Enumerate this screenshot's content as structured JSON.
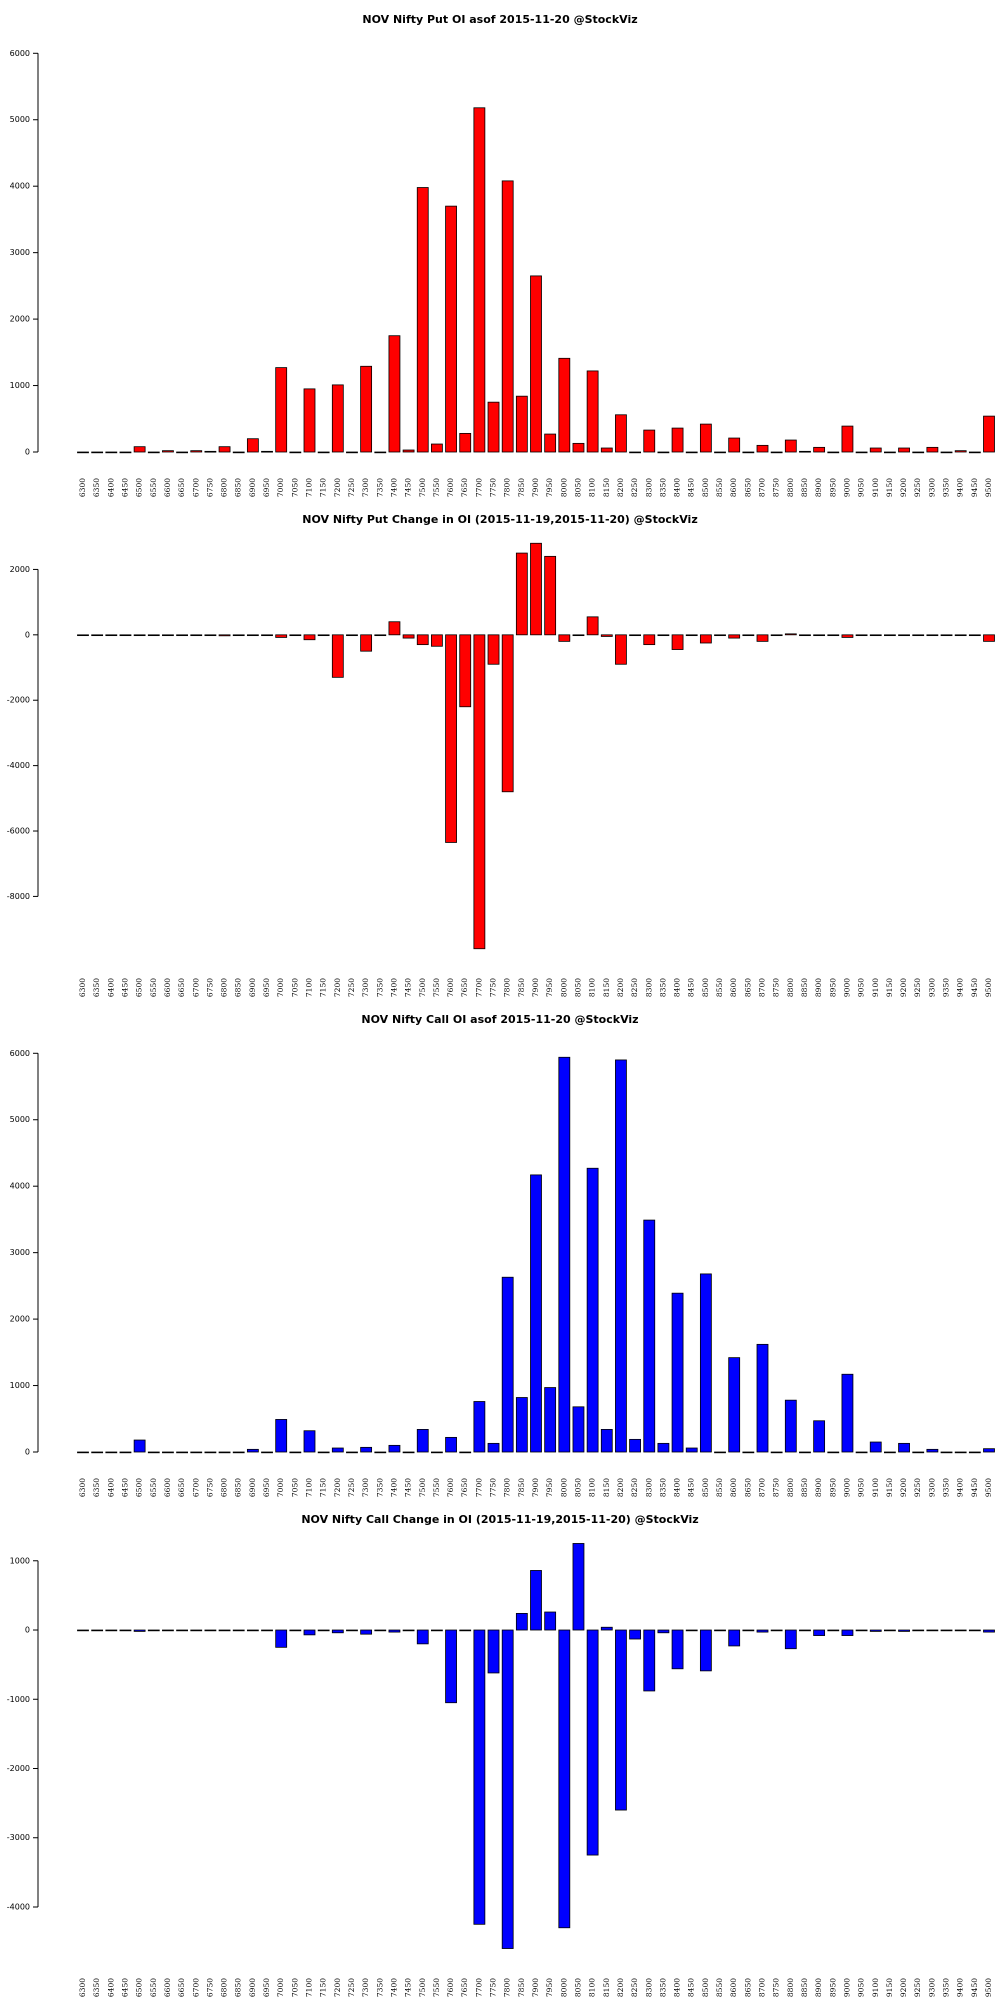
{
  "chart_data": [
    {
      "type": "bar",
      "title": "NOV Nifty Put OI asof 2015-11-20 @StockViz",
      "categories": [
        "6300",
        "6350",
        "6400",
        "6450",
        "6500",
        "6550",
        "6600",
        "6650",
        "6700",
        "6750",
        "6800",
        "6850",
        "6900",
        "6950",
        "7000",
        "7050",
        "7100",
        "7150",
        "7200",
        "7250",
        "7300",
        "7350",
        "7400",
        "7450",
        "7500",
        "7550",
        "7600",
        "7650",
        "7700",
        "7750",
        "7800",
        "7850",
        "7900",
        "7950",
        "8000",
        "8050",
        "8100",
        "8150",
        "8200",
        "8250",
        "8300",
        "8350",
        "8400",
        "8450",
        "8500",
        "8550",
        "8600",
        "8650",
        "8700",
        "8750",
        "8800",
        "8850",
        "8900",
        "8950",
        "9000",
        "9050",
        "9100",
        "9150",
        "9200",
        "9250",
        "9300",
        "9350",
        "9400",
        "9450",
        "9500"
      ],
      "values": [
        0,
        0,
        0,
        0,
        80,
        0,
        20,
        0,
        20,
        10,
        80,
        0,
        200,
        10,
        1270,
        0,
        950,
        0,
        1010,
        0,
        1290,
        0,
        1750,
        30,
        3980,
        120,
        3700,
        280,
        5180,
        750,
        4080,
        840,
        2650,
        270,
        1410,
        130,
        1220,
        60,
        560,
        0,
        330,
        0,
        360,
        0,
        420,
        0,
        210,
        0,
        100,
        0,
        180,
        10,
        70,
        0,
        390,
        0,
        60,
        0,
        60,
        0,
        70,
        0,
        20,
        0,
        540
      ],
      "color": "#ff0000",
      "ylim": [
        0,
        6200
      ],
      "yticks": [
        0,
        1000,
        2000,
        3000,
        4000,
        5000,
        6000
      ]
    },
    {
      "type": "bar",
      "title": "NOV Nifty Put Change in OI (2015-11-19,2015-11-20) @StockViz",
      "categories": [
        "6300",
        "6350",
        "6400",
        "6450",
        "6500",
        "6550",
        "6600",
        "6650",
        "6700",
        "6750",
        "6800",
        "6850",
        "6900",
        "6950",
        "7000",
        "7050",
        "7100",
        "7150",
        "7200",
        "7250",
        "7300",
        "7350",
        "7400",
        "7450",
        "7500",
        "7550",
        "7600",
        "7650",
        "7700",
        "7750",
        "7800",
        "7850",
        "7900",
        "7950",
        "8000",
        "8050",
        "8100",
        "8150",
        "8200",
        "8250",
        "8300",
        "8350",
        "8400",
        "8450",
        "8500",
        "8550",
        "8600",
        "8650",
        "8700",
        "8750",
        "8800",
        "8850",
        "8900",
        "8950",
        "9000",
        "9050",
        "9100",
        "9150",
        "9200",
        "9250",
        "9300",
        "9350",
        "9400",
        "9450",
        "9500"
      ],
      "values": [
        0,
        0,
        0,
        0,
        0,
        0,
        0,
        0,
        0,
        0,
        -30,
        0,
        0,
        0,
        -80,
        0,
        -150,
        0,
        -1300,
        0,
        -500,
        0,
        400,
        -100,
        -300,
        -350,
        -6350,
        -2200,
        -9600,
        -900,
        -4800,
        2500,
        2800,
        2400,
        -200,
        0,
        550,
        -50,
        -900,
        0,
        -300,
        0,
        -450,
        0,
        -250,
        0,
        -100,
        0,
        -200,
        0,
        30,
        0,
        0,
        0,
        -80,
        0,
        0,
        0,
        0,
        0,
        0,
        0,
        0,
        0,
        -200
      ],
      "color": "#ff0000",
      "ylim": [
        -9700,
        2900
      ],
      "yticks": [
        -8000,
        -6000,
        -4000,
        -2000,
        0,
        2000
      ]
    },
    {
      "type": "bar",
      "title": "NOV Nifty Call OI asof 2015-11-20 @StockViz",
      "categories": [
        "6300",
        "6350",
        "6400",
        "6450",
        "6500",
        "6550",
        "6600",
        "6650",
        "6700",
        "6750",
        "6800",
        "6850",
        "6900",
        "6950",
        "7000",
        "7050",
        "7100",
        "7150",
        "7200",
        "7250",
        "7300",
        "7350",
        "7400",
        "7450",
        "7500",
        "7550",
        "7600",
        "7650",
        "7700",
        "7750",
        "7800",
        "7850",
        "7900",
        "7950",
        "8000",
        "8050",
        "8100",
        "8150",
        "8200",
        "8250",
        "8300",
        "8350",
        "8400",
        "8450",
        "8500",
        "8550",
        "8600",
        "8650",
        "8700",
        "8750",
        "8800",
        "8850",
        "8900",
        "8950",
        "9000",
        "9050",
        "9100",
        "9150",
        "9200",
        "9250",
        "9300",
        "9350",
        "9400",
        "9450",
        "9500"
      ],
      "values": [
        0,
        0,
        0,
        0,
        180,
        0,
        0,
        0,
        0,
        0,
        0,
        0,
        40,
        0,
        490,
        0,
        320,
        0,
        60,
        0,
        70,
        0,
        100,
        0,
        340,
        0,
        220,
        0,
        760,
        130,
        2630,
        820,
        4170,
        970,
        5940,
        680,
        4270,
        340,
        5900,
        190,
        3490,
        130,
        2390,
        60,
        2680,
        0,
        1420,
        0,
        1620,
        0,
        780,
        0,
        470,
        0,
        1170,
        0,
        150,
        0,
        130,
        0,
        40,
        0,
        0,
        0,
        50
      ],
      "color": "#0000ff",
      "ylim": [
        0,
        6200
      ],
      "yticks": [
        0,
        1000,
        2000,
        3000,
        4000,
        5000,
        6000
      ]
    },
    {
      "type": "bar",
      "title": "NOV Nifty Call Change in OI (2015-11-19,2015-11-20) @StockViz",
      "categories": [
        "6300",
        "6350",
        "6400",
        "6450",
        "6500",
        "6550",
        "6600",
        "6650",
        "6700",
        "6750",
        "6800",
        "6850",
        "6900",
        "6950",
        "7000",
        "7050",
        "7100",
        "7150",
        "7200",
        "7250",
        "7300",
        "7350",
        "7400",
        "7450",
        "7500",
        "7550",
        "7600",
        "7650",
        "7700",
        "7750",
        "7800",
        "7850",
        "7900",
        "7950",
        "8000",
        "8050",
        "8100",
        "8150",
        "8200",
        "8250",
        "8300",
        "8350",
        "8400",
        "8450",
        "8500",
        "8550",
        "8600",
        "8650",
        "8700",
        "8750",
        "8800",
        "8850",
        "8900",
        "8950",
        "9000",
        "9050",
        "9100",
        "9150",
        "9200",
        "9250",
        "9300",
        "9350",
        "9400",
        "9450",
        "9500"
      ],
      "values": [
        0,
        0,
        0,
        0,
        -20,
        0,
        0,
        0,
        0,
        0,
        0,
        0,
        0,
        0,
        -250,
        0,
        -70,
        0,
        -40,
        0,
        -60,
        0,
        -30,
        0,
        -200,
        0,
        -1050,
        0,
        -4250,
        -620,
        -4600,
        240,
        860,
        260,
        -4300,
        1250,
        -3250,
        40,
        -2600,
        -130,
        -880,
        -40,
        -560,
        0,
        -590,
        0,
        -230,
        0,
        -30,
        0,
        -270,
        0,
        -80,
        0,
        -80,
        0,
        -20,
        0,
        -20,
        0,
        0,
        0,
        0,
        0,
        -30
      ],
      "color": "#0000ff",
      "ylim": [
        -4650,
        1300
      ],
      "yticks": [
        -4000,
        -3000,
        -2000,
        -1000,
        0,
        1000
      ]
    }
  ]
}
